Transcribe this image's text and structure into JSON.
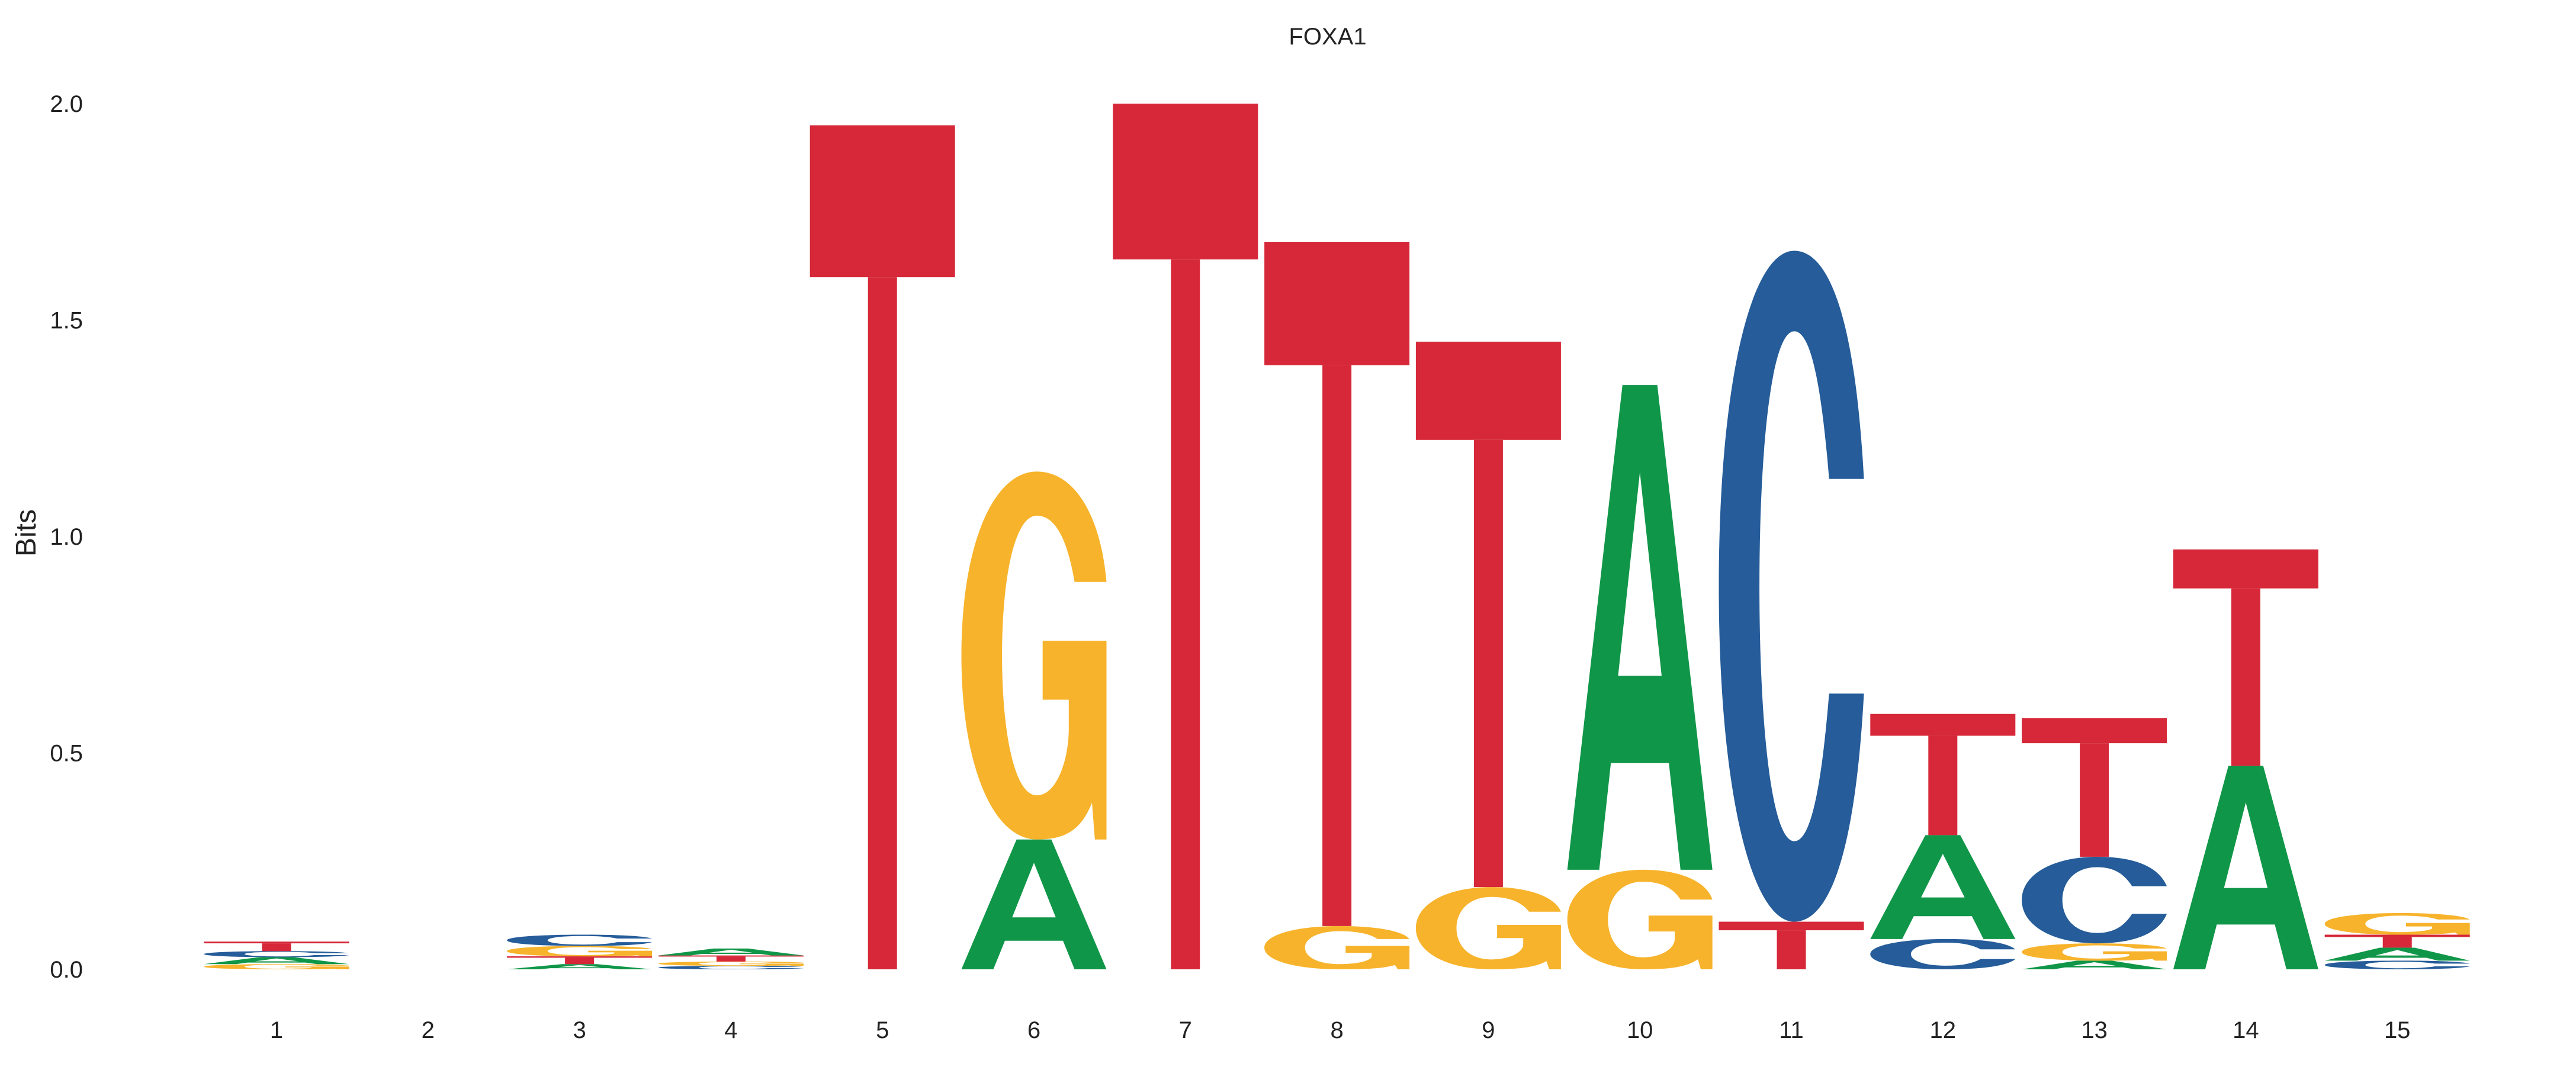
{
  "chart_data": {
    "type": "sequence-logo",
    "title": "FOXA1",
    "xlabel": "",
    "ylabel": "Bits",
    "ylim": [
      0,
      2
    ],
    "yticks": [
      "0.0",
      "0.5",
      "1.0",
      "1.5",
      "2.0"
    ],
    "yticks_values": [
      0,
      0.5,
      1.0,
      1.5,
      2.0
    ],
    "xticks": [
      "1",
      "2",
      "3",
      "4",
      "5",
      "6",
      "7",
      "8",
      "9",
      "10",
      "11",
      "12",
      "13",
      "14",
      "15"
    ],
    "colors": {
      "A": "#109648",
      "C": "#255C99",
      "G": "#F7B32B",
      "T": "#D62839"
    },
    "positions": [
      [
        [
          "G",
          0.012
        ],
        [
          "A",
          0.016
        ],
        [
          "C",
          0.014
        ],
        [
          "T",
          0.022
        ]
      ],
      [],
      [
        [
          "A",
          0.012
        ],
        [
          "T",
          0.018
        ],
        [
          "G",
          0.024
        ],
        [
          "C",
          0.026
        ]
      ],
      [
        [
          "C",
          0.008
        ],
        [
          "G",
          0.01
        ],
        [
          "T",
          0.014
        ],
        [
          "A",
          0.016
        ]
      ],
      [
        [
          "T",
          1.95
        ]
      ],
      [
        [
          "A",
          0.3
        ],
        [
          "G",
          0.85
        ]
      ],
      [
        [
          "T",
          2.0
        ]
      ],
      [
        [
          "G",
          0.1
        ],
        [
          "T",
          1.58
        ]
      ],
      [
        [
          "G",
          0.19
        ],
        [
          "T",
          1.26
        ]
      ],
      [
        [
          "G",
          0.23
        ],
        [
          "A",
          1.12
        ]
      ],
      [
        [
          "T",
          0.11
        ],
        [
          "C",
          1.55
        ]
      ],
      [
        [
          "C",
          0.07
        ],
        [
          "A",
          0.24
        ],
        [
          "T",
          0.28
        ]
      ],
      [
        [
          "A",
          0.02
        ],
        [
          "G",
          0.04
        ],
        [
          "C",
          0.2
        ],
        [
          "T",
          0.32
        ]
      ],
      [
        [
          "A",
          0.47
        ],
        [
          "T",
          0.5
        ]
      ],
      [
        [
          "C",
          0.02
        ],
        [
          "A",
          0.03
        ],
        [
          "T",
          0.03
        ],
        [
          "G",
          0.05
        ]
      ]
    ]
  }
}
